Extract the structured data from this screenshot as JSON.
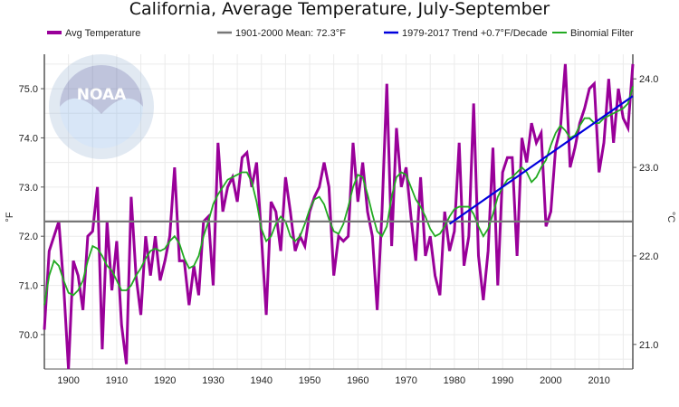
{
  "chart_data": {
    "type": "line",
    "title": "California, Average Temperature, July-September",
    "ylabel": "°F",
    "y2label": "°C",
    "xlim": [
      1895,
      2017
    ],
    "ylim": [
      69.3,
      75.7
    ],
    "grid": true,
    "x_ticks": [
      {
        "value": 1900,
        "label": "1900"
      },
      {
        "value": 1910,
        "label": "1910"
      },
      {
        "value": 1920,
        "label": "1920"
      },
      {
        "value": 1930,
        "label": "1930"
      },
      {
        "value": 1940,
        "label": "1940"
      },
      {
        "value": 1950,
        "label": "1950"
      },
      {
        "value": 1960,
        "label": "1960"
      },
      {
        "value": 1970,
        "label": "1970"
      },
      {
        "value": 1980,
        "label": "1980"
      },
      {
        "value": 1990,
        "label": "1990"
      },
      {
        "value": 2000,
        "label": "2000"
      },
      {
        "value": 2010,
        "label": "2010"
      }
    ],
    "y_ticks": [
      {
        "value": 70.0,
        "label": "70.0"
      },
      {
        "value": 71.0,
        "label": "71.0"
      },
      {
        "value": 72.0,
        "label": "72.0"
      },
      {
        "value": 73.0,
        "label": "73.0"
      },
      {
        "value": 74.0,
        "label": "74.0"
      },
      {
        "value": 75.0,
        "label": "75.0"
      }
    ],
    "y2_ticks": [
      {
        "value": 21.0,
        "label": "21.0"
      },
      {
        "value": 22.0,
        "label": "22.0"
      },
      {
        "value": 23.0,
        "label": "23.0"
      },
      {
        "value": 24.0,
        "label": "24.0"
      }
    ],
    "legend": [
      {
        "name": "Avg Temperature",
        "color": "#990099"
      },
      {
        "name": "1901-2000 Mean: 72.3°F",
        "color": "#777777"
      },
      {
        "name": "1979-2017 Trend +0.7°F/Decade",
        "color": "#0000dd"
      },
      {
        "name": "Binomial Filter",
        "color": "#22aa22"
      }
    ],
    "legend_position": "top",
    "logo_text": "NOAA",
    "series": [
      {
        "name": "Avg Temperature",
        "color": "#990099",
        "x": [
          1895,
          1896,
          1897,
          1898,
          1899,
          1900,
          1901,
          1902,
          1903,
          1904,
          1905,
          1906,
          1907,
          1908,
          1909,
          1910,
          1911,
          1912,
          1913,
          1914,
          1915,
          1916,
          1917,
          1918,
          1919,
          1920,
          1921,
          1922,
          1923,
          1924,
          1925,
          1926,
          1927,
          1928,
          1929,
          1930,
          1931,
          1932,
          1933,
          1934,
          1935,
          1936,
          1937,
          1938,
          1939,
          1940,
          1941,
          1942,
          1943,
          1944,
          1945,
          1946,
          1947,
          1948,
          1949,
          1950,
          1951,
          1952,
          1953,
          1954,
          1955,
          1956,
          1957,
          1958,
          1959,
          1960,
          1961,
          1962,
          1963,
          1964,
          1965,
          1966,
          1967,
          1968,
          1969,
          1970,
          1971,
          1972,
          1973,
          1974,
          1975,
          1976,
          1977,
          1978,
          1979,
          1980,
          1981,
          1982,
          1983,
          1984,
          1985,
          1986,
          1987,
          1988,
          1989,
          1990,
          1991,
          1992,
          1993,
          1994,
          1995,
          1996,
          1997,
          1998,
          1999,
          2000,
          2001,
          2002,
          2003,
          2004,
          2005,
          2006,
          2007,
          2008,
          2009,
          2010,
          2011,
          2012,
          2013,
          2014,
          2015,
          2016,
          2017
        ],
        "values": [
          70.1,
          71.7,
          72.0,
          72.3,
          71.0,
          69.3,
          71.5,
          71.2,
          70.5,
          72.0,
          72.1,
          73.0,
          69.7,
          72.3,
          70.9,
          71.9,
          70.2,
          69.4,
          72.8,
          71.2,
          70.4,
          72.0,
          71.2,
          72.0,
          71.1,
          71.5,
          72.0,
          73.4,
          71.5,
          71.5,
          70.6,
          71.4,
          70.8,
          72.3,
          72.4,
          71.0,
          73.9,
          72.5,
          73.0,
          73.2,
          72.7,
          73.6,
          73.7,
          73.0,
          73.5,
          72.0,
          70.4,
          72.7,
          72.5,
          71.7,
          73.2,
          72.5,
          71.7,
          72.0,
          71.8,
          72.5,
          72.8,
          73.0,
          73.5,
          73.0,
          71.2,
          72.0,
          71.9,
          72.0,
          73.9,
          72.7,
          73.5,
          72.5,
          72.0,
          70.5,
          72.5,
          75.1,
          71.8,
          74.2,
          73.0,
          73.4,
          72.4,
          71.5,
          73.2,
          71.6,
          72.0,
          71.2,
          70.8,
          72.5,
          71.7,
          72.1,
          73.9,
          71.4,
          72.0,
          74.7,
          71.6,
          70.7,
          71.7,
          73.8,
          71.0,
          73.3,
          73.6,
          73.6,
          71.6,
          74.0,
          73.5,
          74.3,
          73.9,
          74.1,
          72.2,
          72.5,
          73.8,
          74.2,
          75.5,
          73.4,
          73.8,
          74.3,
          74.6,
          75.0,
          75.1,
          73.3,
          73.9,
          75.2,
          73.9,
          75.0,
          74.4,
          74.2,
          75.5
        ]
      },
      {
        "name": "Binomial Filter",
        "color": "#22aa22",
        "x": [
          1895,
          1896,
          1897,
          1898,
          1899,
          1900,
          1901,
          1902,
          1903,
          1904,
          1905,
          1906,
          1907,
          1908,
          1909,
          1910,
          1911,
          1912,
          1913,
          1914,
          1915,
          1916,
          1917,
          1918,
          1919,
          1920,
          1921,
          1922,
          1923,
          1924,
          1925,
          1926,
          1927,
          1928,
          1929,
          1930,
          1931,
          1932,
          1933,
          1934,
          1935,
          1936,
          1937,
          1938,
          1939,
          1940,
          1941,
          1942,
          1943,
          1944,
          1945,
          1946,
          1947,
          1948,
          1949,
          1950,
          1951,
          1952,
          1953,
          1954,
          1955,
          1956,
          1957,
          1958,
          1959,
          1960,
          1961,
          1962,
          1963,
          1964,
          1965,
          1966,
          1967,
          1968,
          1969,
          1970,
          1971,
          1972,
          1973,
          1974,
          1975,
          1976,
          1977,
          1978,
          1979,
          1980,
          1981,
          1982,
          1983,
          1984,
          1985,
          1986,
          1987,
          1988,
          1989,
          1990,
          1991,
          1992,
          1993,
          1994,
          1995,
          1996,
          1997,
          1998,
          1999,
          2000,
          2001,
          2002,
          2003,
          2004,
          2005,
          2006,
          2007,
          2008,
          2009,
          2010,
          2011,
          2012,
          2013,
          2014,
          2015,
          2016,
          2017
        ],
        "values": [
          70.6,
          71.2,
          71.5,
          71.4,
          71.1,
          70.85,
          70.8,
          70.9,
          71.1,
          71.5,
          71.8,
          71.75,
          71.6,
          71.4,
          71.3,
          71.1,
          70.9,
          70.9,
          71.0,
          71.2,
          71.35,
          71.55,
          71.7,
          71.75,
          71.7,
          71.75,
          71.9,
          72.0,
          71.85,
          71.55,
          71.35,
          71.4,
          71.6,
          72.0,
          72.3,
          72.65,
          72.85,
          73.0,
          73.15,
          73.2,
          73.25,
          73.3,
          73.3,
          73.1,
          72.7,
          72.15,
          71.9,
          72.0,
          72.25,
          72.4,
          72.3,
          72.0,
          71.9,
          72.0,
          72.25,
          72.55,
          72.75,
          72.8,
          72.65,
          72.35,
          72.1,
          72.05,
          72.25,
          72.6,
          73.0,
          73.25,
          73.2,
          72.85,
          72.45,
          72.1,
          72.0,
          72.2,
          72.8,
          73.2,
          73.3,
          73.25,
          73.0,
          72.75,
          72.6,
          72.4,
          72.15,
          72.0,
          72.05,
          72.2,
          72.4,
          72.55,
          72.6,
          72.6,
          72.6,
          72.45,
          72.2,
          72.0,
          72.15,
          72.45,
          72.8,
          73.0,
          73.15,
          73.2,
          73.3,
          73.4,
          73.3,
          73.1,
          73.2,
          73.4,
          73.55,
          73.85,
          74.1,
          74.25,
          74.15,
          74.0,
          74.05,
          74.25,
          74.4,
          74.4,
          74.3,
          74.3,
          74.4,
          74.45,
          74.5,
          74.55,
          74.6,
          74.7,
          75.05
        ]
      },
      {
        "name": "1901-2000 Mean: 72.3°F",
        "color": "#777777",
        "x": [
          1895,
          2017
        ],
        "values": [
          72.3,
          72.3
        ]
      },
      {
        "name": "1979-2017 Trend +0.7°F/Decade",
        "color": "#0000dd",
        "x": [
          1979,
          2017
        ],
        "values": [
          72.25,
          74.85
        ]
      }
    ]
  }
}
